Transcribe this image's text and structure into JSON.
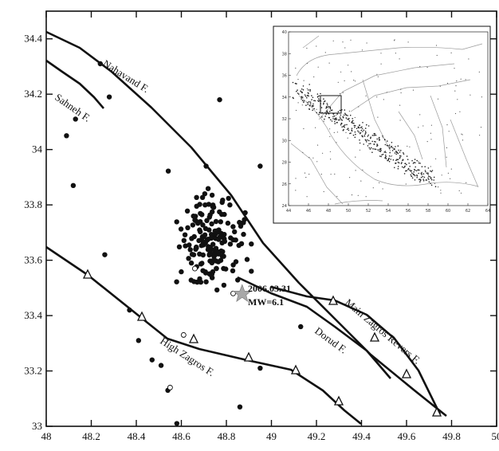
{
  "map": {
    "x_axis": {
      "range": [
        48,
        50
      ],
      "ticks": [
        "48",
        "48.2",
        "48.4",
        "48.6",
        "48.8",
        "49",
        "49.2",
        "49.4",
        "49.6",
        "49.8",
        "50"
      ]
    },
    "y_axis": {
      "range": [
        33,
        34.5
      ],
      "ticks": [
        "33",
        "33.2",
        "33.4",
        "33.6",
        "33.8",
        "34",
        "34.2",
        "34.4"
      ]
    },
    "faults": {
      "nahavand": "Nahavand F.",
      "sahneh": "Sahneh F.",
      "high_zagros": "High Zagros F.",
      "dorud": "Dorud F.",
      "main_zagros": "Main Zagros Revers F."
    },
    "mainshock": {
      "date_label": "2006.03.31",
      "magnitude_label": "MW=6.1",
      "lon": 48.87,
      "lat": 33.48
    },
    "inset": {
      "x_ticks": [
        "44",
        "46",
        "48",
        "50",
        "52",
        "54",
        "56",
        "58",
        "60",
        "62",
        "64"
      ],
      "y_ticks": [
        "24",
        "26",
        "28",
        "30",
        "32",
        "34",
        "36",
        "38",
        "40"
      ]
    },
    "colors": {
      "marker": "#111111",
      "fault": "#111111",
      "mainshock": "#a8a8a8",
      "inset_lines": "#9a9a9a"
    }
  }
}
